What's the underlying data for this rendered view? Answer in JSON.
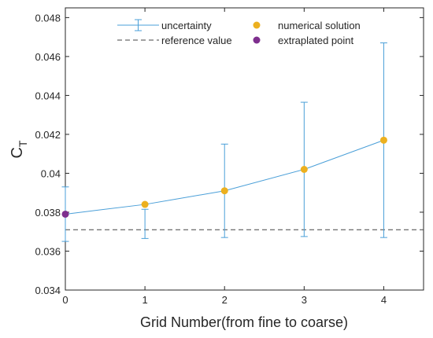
{
  "chart_data": {
    "type": "line",
    "xlabel": "Grid Number(from fine to coarse)",
    "ylabel_main": "C",
    "ylabel_sub": "T",
    "xlim": [
      0,
      4.5
    ],
    "ylim": [
      0.034,
      0.0485
    ],
    "xticks": [
      0,
      1,
      2,
      3,
      4
    ],
    "xtick_labels": [
      "0",
      "1",
      "2",
      "3",
      "4"
    ],
    "yticks": [
      0.034,
      0.036,
      0.038,
      0.04,
      0.042,
      0.044,
      0.046,
      0.048
    ],
    "ytick_labels": [
      "0.034",
      "0.036",
      "0.038",
      "0.04",
      "0.042",
      "0.044",
      "0.046",
      "0.048"
    ],
    "grid": false,
    "legend_position": "top",
    "colors": {
      "line": "#4a9fd8",
      "numerical": "#ecb01f",
      "extrapolated": "#7e2f8e",
      "reference": "#444444",
      "axis": "#262626"
    },
    "legend": {
      "uncertainty": "uncertainty",
      "numerical": "numerical solution",
      "reference": "reference value",
      "extrapolated": "extraplated point"
    },
    "series": [
      {
        "name": "numerical solution",
        "x": [
          1,
          2,
          3,
          4
        ],
        "y": [
          0.0384,
          0.0391,
          0.0402,
          0.0417
        ]
      },
      {
        "name": "extraplated point",
        "x": [
          0
        ],
        "y": [
          0.0379
        ]
      }
    ],
    "line_xy": {
      "x": [
        0,
        1,
        2,
        3,
        4
      ],
      "y": [
        0.0379,
        0.0384,
        0.0391,
        0.0402,
        0.0417
      ]
    },
    "error_bars": {
      "x": [
        0,
        1,
        2,
        3,
        4
      ],
      "lower": [
        0.0365,
        0.03665,
        0.0367,
        0.03675,
        0.0367
      ],
      "upper": [
        0.0393,
        0.03815,
        0.0415,
        0.04365,
        0.0467
      ]
    },
    "reference_value": 0.0371
  }
}
